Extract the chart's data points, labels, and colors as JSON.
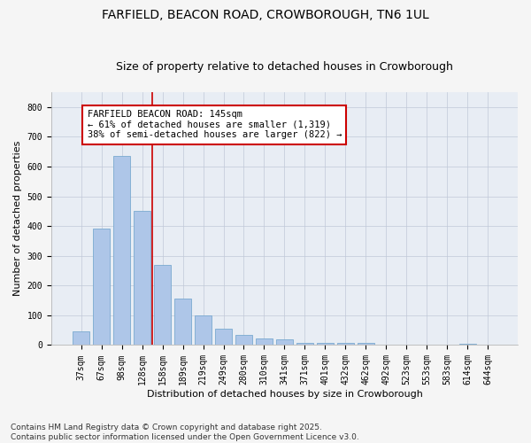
{
  "title1": "FARFIELD, BEACON ROAD, CROWBOROUGH, TN6 1UL",
  "title2": "Size of property relative to detached houses in Crowborough",
  "xlabel": "Distribution of detached houses by size in Crowborough",
  "ylabel": "Number of detached properties",
  "categories": [
    "37sqm",
    "67sqm",
    "98sqm",
    "128sqm",
    "158sqm",
    "189sqm",
    "219sqm",
    "249sqm",
    "280sqm",
    "310sqm",
    "341sqm",
    "371sqm",
    "401sqm",
    "432sqm",
    "462sqm",
    "492sqm",
    "523sqm",
    "553sqm",
    "583sqm",
    "614sqm",
    "644sqm"
  ],
  "values": [
    45,
    390,
    635,
    450,
    270,
    155,
    100,
    55,
    35,
    22,
    18,
    8,
    8,
    8,
    8,
    0,
    0,
    0,
    0,
    5,
    0
  ],
  "bar_color": "#aec6e8",
  "bar_edge_color": "#7aaad0",
  "vline_x": 3.5,
  "vline_color": "#cc0000",
  "annotation_text": "FARFIELD BEACON ROAD: 145sqm\n← 61% of detached houses are smaller (1,319)\n38% of semi-detached houses are larger (822) →",
  "annotation_box_color": "#ffffff",
  "annotation_box_edge": "#cc0000",
  "ylim": [
    0,
    850
  ],
  "yticks": [
    0,
    100,
    200,
    300,
    400,
    500,
    600,
    700,
    800
  ],
  "bg_color": "#e8edf4",
  "fig_bg_color": "#f5f5f5",
  "footer": "Contains HM Land Registry data © Crown copyright and database right 2025.\nContains public sector information licensed under the Open Government Licence v3.0.",
  "title1_fontsize": 10,
  "title2_fontsize": 9,
  "tick_fontsize": 7,
  "axis_label_fontsize": 8,
  "annotation_fontsize": 7.5,
  "footer_fontsize": 6.5
}
